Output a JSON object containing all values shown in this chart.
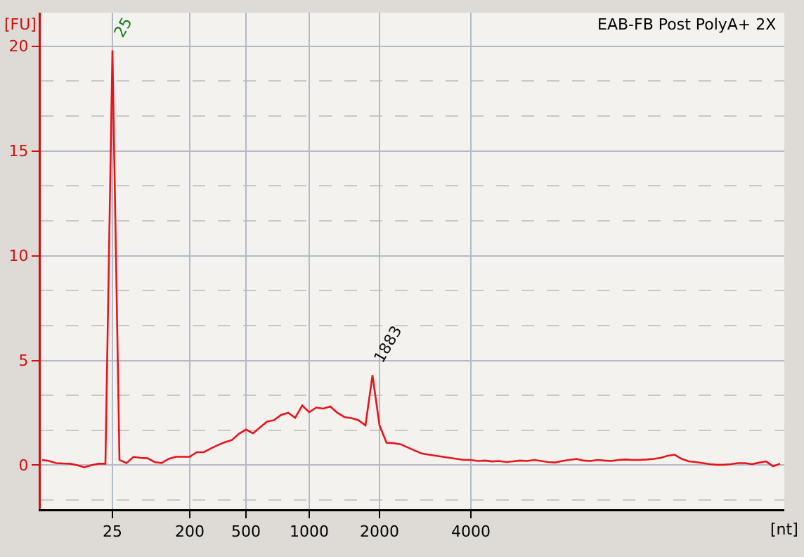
{
  "chart_data": {
    "type": "line",
    "title": "EAB-FB Post PolyA+ 2X",
    "xlabel": "[nt]",
    "ylabel": "[FU]",
    "categories": [
      null,
      null,
      null,
      null,
      null,
      null,
      null,
      null,
      null,
      null,
      "25",
      null,
      null,
      null,
      null,
      null,
      null,
      null,
      null,
      null,
      null,
      "200",
      null,
      null,
      null,
      null,
      null,
      null,
      null,
      "500",
      null,
      null,
      null,
      null,
      null,
      null,
      null,
      null,
      "1000",
      null,
      null,
      null,
      null,
      null,
      null,
      null,
      null,
      null,
      "2000",
      null,
      null,
      null,
      null,
      null,
      null,
      null,
      null,
      null,
      null,
      null,
      null,
      "4000",
      null,
      null,
      null,
      null,
      null,
      null,
      null,
      null,
      null,
      null,
      null,
      null,
      null,
      null,
      null,
      null,
      null,
      null,
      null,
      null,
      null,
      null,
      null,
      null,
      null,
      null,
      null,
      null,
      null,
      null,
      null,
      null,
      null,
      null,
      null,
      null,
      null,
      null,
      null,
      null,
      null,
      null,
      null,
      null
    ],
    "series": [
      {
        "color": "#e8141c",
        "values": [
          0.25,
          0.2,
          0.1,
          0.08,
          0.07,
          0,
          -0.1,
          0,
          0.07,
          0.07,
          19.8,
          0.25,
          0.1,
          0.4,
          0.35,
          0.33,
          0.15,
          0.1,
          0.3,
          0.4,
          0.4,
          0.4,
          0.62,
          0.62,
          0.8,
          0.96,
          1.1,
          1.2,
          1.5,
          1.7,
          1.52,
          1.8,
          2.08,
          2.15,
          2.4,
          2.5,
          2.26,
          2.85,
          2.53,
          2.75,
          2.7,
          2.8,
          2.5,
          2.3,
          2.25,
          2.15,
          1.9,
          4.3,
          1.9,
          1.07,
          1.05,
          1.0,
          0.85,
          0.7,
          0.56,
          0.5,
          0.45,
          0.4,
          0.35,
          0.3,
          0.25,
          0.25,
          0.2,
          0.22,
          0.18,
          0.2,
          0.15,
          0.18,
          0.22,
          0.2,
          0.25,
          0.2,
          0.15,
          0.13,
          0.2,
          0.25,
          0.3,
          0.22,
          0.2,
          0.25,
          0.22,
          0.2,
          0.25,
          0.27,
          0.25,
          0.25,
          0.27,
          0.3,
          0.35,
          0.45,
          0.5,
          0.3,
          0.18,
          0.15,
          0.1,
          0.05,
          0.02,
          0.02,
          0.05,
          0.1,
          0.1,
          0.05,
          0.12,
          0.18,
          -0.05,
          0.07
        ]
      }
    ],
    "ylim": [
      -2.1,
      21.6
    ],
    "yticks": [
      0,
      5,
      10,
      15,
      20
    ],
    "grid": true,
    "marker": "none",
    "line_style": "solid",
    "annotations": [
      {
        "text": "25",
        "x": "25",
        "y": 19.8
      },
      "1883"
    ]
  }
}
